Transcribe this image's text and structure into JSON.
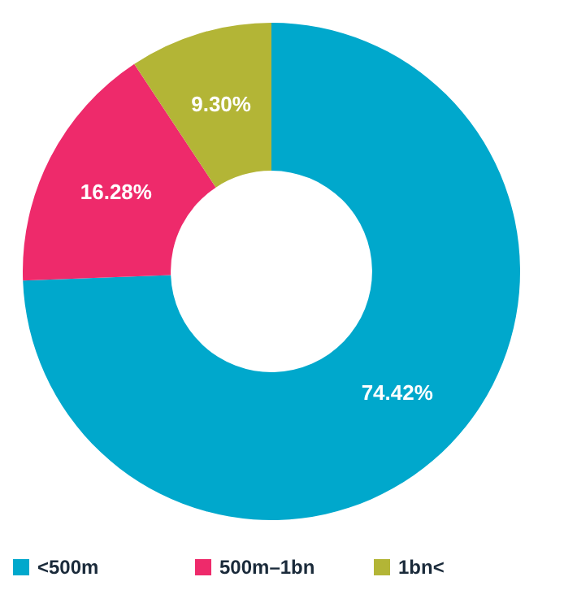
{
  "chart_data": {
    "type": "donut",
    "categories": [
      "<500m",
      "500m–1bn",
      "1bn<"
    ],
    "values": [
      74.42,
      16.28,
      9.3
    ],
    "value_labels": [
      "74.42%",
      "16.28%",
      "9.30%"
    ],
    "colors": [
      "#00a8cc",
      "#ee2a6b",
      "#b3b536"
    ],
    "legend": "bottom"
  }
}
